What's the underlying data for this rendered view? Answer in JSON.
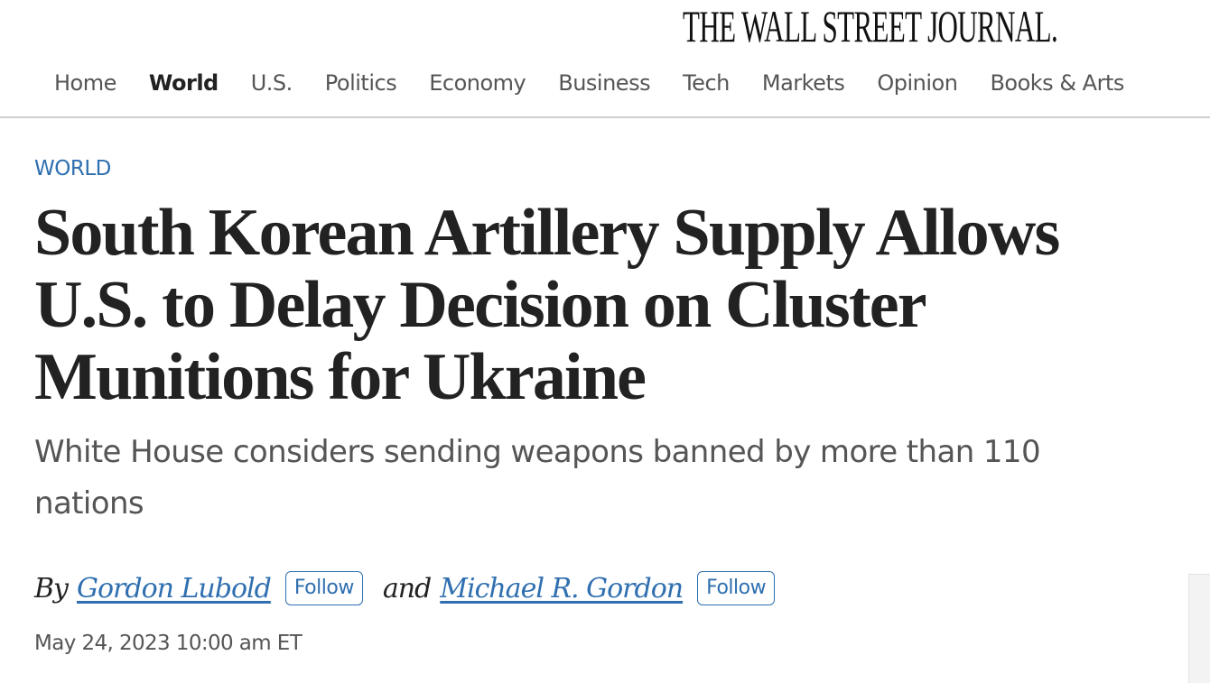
{
  "masthead": {
    "logo": "THE WALL STREET JOURNAL."
  },
  "nav": {
    "items": [
      {
        "label": "Home",
        "active": false
      },
      {
        "label": "World",
        "active": true
      },
      {
        "label": "U.S.",
        "active": false
      },
      {
        "label": "Politics",
        "active": false
      },
      {
        "label": "Economy",
        "active": false
      },
      {
        "label": "Business",
        "active": false
      },
      {
        "label": "Tech",
        "active": false
      },
      {
        "label": "Markets",
        "active": false
      },
      {
        "label": "Opinion",
        "active": false
      },
      {
        "label": "Books & Arts",
        "active": false
      }
    ]
  },
  "article": {
    "section": "WORLD",
    "headline": "South Korean Artillery Supply Allows U.S. to Delay Decision on Cluster Munitions for Ukraine",
    "dek": "White House considers sending weapons banned by more than 110 nations",
    "byline": {
      "by": "By",
      "author1": "Gordon Lubold",
      "follow1": "Follow",
      "and": "and",
      "author2": "Michael R. Gordon",
      "follow2": "Follow"
    },
    "date": "May 24, 2023 10:00 am ET"
  },
  "colors": {
    "accent": "#2f6fb0",
    "text": "#222222",
    "muted": "#555555"
  }
}
